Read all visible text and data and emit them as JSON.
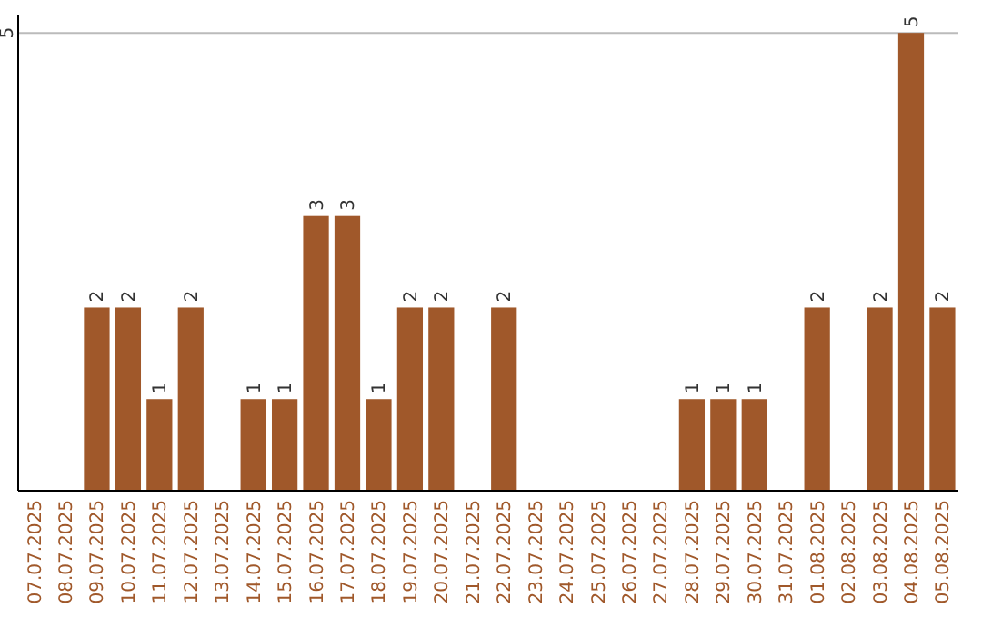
{
  "chart_data": {
    "type": "bar",
    "categories": [
      "07.07.2025",
      "08.07.2025",
      "09.07.2025",
      "10.07.2025",
      "11.07.2025",
      "12.07.2025",
      "13.07.2025",
      "14.07.2025",
      "15.07.2025",
      "16.07.2025",
      "17.07.2025",
      "18.07.2025",
      "19.07.2025",
      "20.07.2025",
      "21.07.2025",
      "22.07.2025",
      "23.07.2025",
      "24.07.2025",
      "25.07.2025",
      "26.07.2025",
      "27.07.2025",
      "28.07.2025",
      "29.07.2025",
      "30.07.2025",
      "31.07.2025",
      "01.08.2025",
      "02.08.2025",
      "03.08.2025",
      "04.08.2025",
      "05.08.2025"
    ],
    "values": [
      0,
      0,
      2,
      2,
      1,
      2,
      0,
      1,
      1,
      3,
      3,
      1,
      2,
      2,
      0,
      2,
      0,
      0,
      0,
      0,
      0,
      1,
      1,
      1,
      0,
      2,
      0,
      2,
      5,
      2
    ],
    "value_labels": [
      null,
      null,
      "2",
      "2",
      "1",
      "2",
      null,
      "1",
      "1",
      "3",
      "3",
      "1",
      "2",
      "2",
      null,
      "2",
      null,
      null,
      null,
      null,
      null,
      "1",
      "1",
      "1",
      null,
      "2",
      null,
      "2",
      "5",
      "2"
    ],
    "color": "#a0582a",
    "ylim": [
      0,
      5.2
    ],
    "yticks": [
      5
    ],
    "grid": "y"
  }
}
